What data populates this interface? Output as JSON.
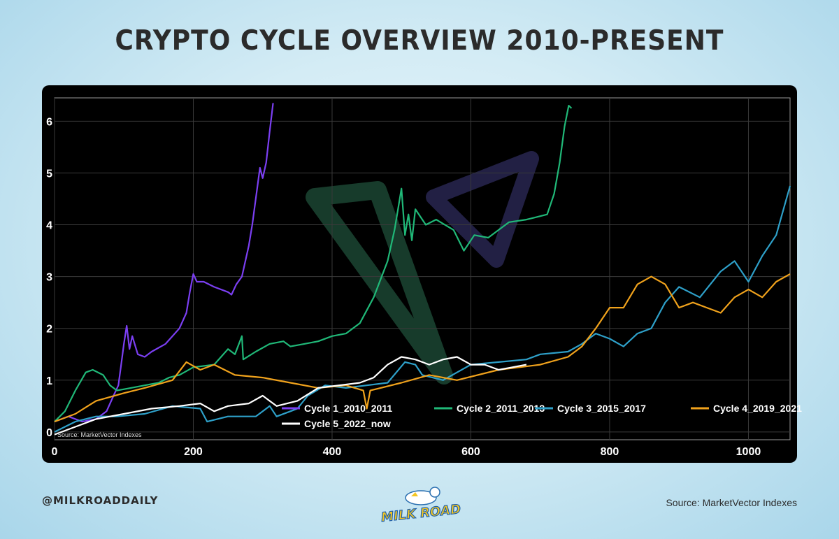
{
  "header": {
    "title": "CRYPTO CYCLE OVERVIEW 2010-PRESENT"
  },
  "footer": {
    "handle": "@MILKROADDAILY",
    "source": "Source: MarketVector Indexes",
    "logo_text": "MILK ROAD"
  },
  "colors": {
    "background": "#000000",
    "cycle1": "#7b3ff2",
    "cycle2": "#20b878",
    "cycle3": "#2ea0c9",
    "cycle4": "#f0a21c",
    "cycle5": "#ffffff"
  },
  "chart_data": {
    "type": "line",
    "title": "",
    "xlabel": "",
    "ylabel": "",
    "xlim": [
      0,
      1060
    ],
    "ylim": [
      -0.15,
      6.45
    ],
    "x_ticks": [
      0,
      200,
      400,
      600,
      800,
      1000
    ],
    "y_ticks": [
      0,
      1,
      2,
      3,
      4,
      5,
      6
    ],
    "grid": true,
    "legend_position": "bottom-left",
    "source_note": "Source: MarketVector Indexes",
    "series": [
      {
        "name": "Cycle 1_2010_2011",
        "color": "#7b3ff2",
        "x": [
          0,
          20,
          40,
          60,
          75,
          85,
          92,
          96,
          100,
          104,
          108,
          112,
          120,
          130,
          140,
          160,
          180,
          190,
          195,
          200,
          205,
          215,
          230,
          250,
          255,
          262,
          270,
          280,
          285,
          290,
          296,
          300,
          305,
          310,
          315
        ],
        "y": [
          0.2,
          0.3,
          0.2,
          0.25,
          0.4,
          0.7,
          0.9,
          1.3,
          1.7,
          2.05,
          1.6,
          1.85,
          1.5,
          1.45,
          1.55,
          1.7,
          2.0,
          2.3,
          2.7,
          3.05,
          2.9,
          2.9,
          2.8,
          2.7,
          2.65,
          2.85,
          3.0,
          3.6,
          4.0,
          4.5,
          5.1,
          4.9,
          5.2,
          5.8,
          6.35
        ]
      },
      {
        "name": "Cycle 2_2011_2013",
        "color": "#20b878",
        "x": [
          0,
          15,
          30,
          45,
          55,
          70,
          80,
          90,
          110,
          130,
          150,
          165,
          180,
          200,
          230,
          250,
          260,
          270,
          272,
          290,
          310,
          330,
          340,
          360,
          380,
          400,
          420,
          440,
          460,
          480,
          490,
          500,
          505,
          510,
          515,
          520,
          535,
          550,
          575,
          590,
          605,
          625,
          655,
          680,
          710,
          720,
          728,
          735,
          741,
          745
        ],
        "y": [
          0.2,
          0.4,
          0.8,
          1.15,
          1.2,
          1.1,
          0.9,
          0.8,
          0.85,
          0.9,
          0.95,
          1.05,
          1.1,
          1.25,
          1.3,
          1.6,
          1.5,
          1.85,
          1.4,
          1.55,
          1.7,
          1.75,
          1.65,
          1.7,
          1.75,
          1.85,
          1.9,
          2.1,
          2.6,
          3.3,
          3.9,
          4.7,
          3.8,
          4.2,
          3.7,
          4.3,
          4.0,
          4.1,
          3.9,
          3.5,
          3.8,
          3.75,
          4.05,
          4.1,
          4.2,
          4.6,
          5.2,
          5.9,
          6.3,
          6.25
        ]
      },
      {
        "name": "Cycle 3_2015_2017",
        "color": "#2ea0c9",
        "x": [
          0,
          30,
          60,
          90,
          130,
          170,
          210,
          220,
          250,
          290,
          310,
          320,
          340,
          350,
          365,
          390,
          420,
          450,
          480,
          505,
          520,
          530,
          560,
          600,
          640,
          680,
          700,
          740,
          760,
          780,
          800,
          820,
          840,
          860,
          880,
          900,
          930,
          960,
          980,
          1000,
          1020,
          1040,
          1060
        ],
        "y": [
          0.0,
          0.2,
          0.3,
          0.3,
          0.35,
          0.5,
          0.45,
          0.2,
          0.3,
          0.3,
          0.5,
          0.3,
          0.4,
          0.45,
          0.7,
          0.9,
          0.85,
          0.9,
          0.95,
          1.35,
          1.3,
          1.1,
          1.0,
          1.3,
          1.35,
          1.4,
          1.5,
          1.55,
          1.7,
          1.9,
          1.8,
          1.65,
          1.9,
          2.0,
          2.5,
          2.8,
          2.6,
          3.1,
          3.3,
          2.9,
          3.4,
          3.8,
          4.75
        ]
      },
      {
        "name": "Cycle 4_2019_2021",
        "color": "#f0a21c",
        "x": [
          0,
          30,
          60,
          100,
          130,
          170,
          190,
          210,
          230,
          260,
          300,
          340,
          380,
          420,
          445,
          450,
          455,
          470,
          500,
          540,
          580,
          640,
          700,
          740,
          760,
          780,
          800,
          820,
          840,
          860,
          880,
          900,
          920,
          940,
          960,
          980,
          1000,
          1020,
          1040,
          1060
        ],
        "y": [
          0.2,
          0.35,
          0.6,
          0.75,
          0.85,
          1.0,
          1.35,
          1.2,
          1.3,
          1.1,
          1.05,
          0.95,
          0.85,
          0.9,
          0.8,
          0.45,
          0.8,
          0.85,
          0.95,
          1.1,
          1.0,
          1.2,
          1.3,
          1.45,
          1.65,
          2.0,
          2.4,
          2.4,
          2.85,
          3.0,
          2.85,
          2.4,
          2.5,
          2.4,
          2.3,
          2.6,
          2.75,
          2.6,
          2.9,
          3.05
        ]
      },
      {
        "name": "Cycle 5_2022_now",
        "color": "#ffffff",
        "x": [
          0,
          30,
          60,
          100,
          140,
          180,
          210,
          230,
          250,
          280,
          300,
          320,
          350,
          380,
          410,
          440,
          460,
          480,
          500,
          520,
          540,
          560,
          580,
          600,
          620,
          640,
          660,
          680
        ],
        "y": [
          -0.05,
          0.1,
          0.25,
          0.35,
          0.45,
          0.5,
          0.55,
          0.4,
          0.5,
          0.55,
          0.7,
          0.5,
          0.6,
          0.85,
          0.9,
          0.95,
          1.05,
          1.3,
          1.45,
          1.4,
          1.3,
          1.4,
          1.45,
          1.3,
          1.3,
          1.2,
          1.25,
          1.3
        ]
      }
    ]
  }
}
